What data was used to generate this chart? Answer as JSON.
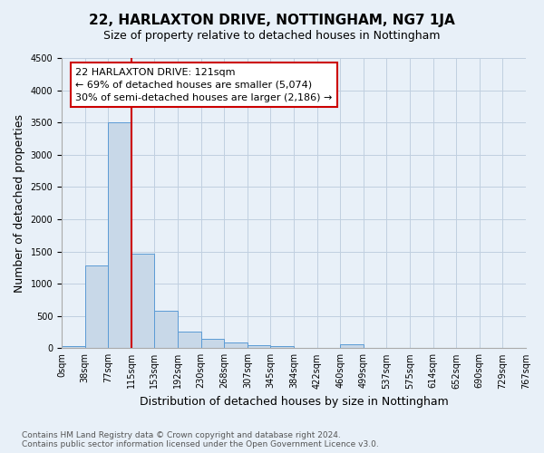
{
  "title": "22, HARLAXTON DRIVE, NOTTINGHAM, NG7 1JA",
  "subtitle": "Size of property relative to detached houses in Nottingham",
  "xlabel": "Distribution of detached houses by size in Nottingham",
  "ylabel": "Number of detached properties",
  "bar_color": "#c8d8e8",
  "bar_edge_color": "#5b9bd5",
  "grid_color": "#c0cfe0",
  "background_color": "#e8f0f8",
  "tick_labels": [
    "0sqm",
    "38sqm",
    "77sqm",
    "115sqm",
    "153sqm",
    "192sqm",
    "230sqm",
    "268sqm",
    "307sqm",
    "345sqm",
    "384sqm",
    "422sqm",
    "460sqm",
    "499sqm",
    "537sqm",
    "575sqm",
    "614sqm",
    "652sqm",
    "690sqm",
    "729sqm",
    "767sqm"
  ],
  "bar_values": [
    30,
    1280,
    3500,
    1470,
    580,
    260,
    145,
    90,
    50,
    30,
    5,
    0,
    60,
    0,
    0,
    0,
    0,
    0,
    0,
    0
  ],
  "ylim": [
    0,
    4500
  ],
  "yticks": [
    0,
    500,
    1000,
    1500,
    2000,
    2500,
    3000,
    3500,
    4000,
    4500
  ],
  "vline_bar_index": 3,
  "vline_color": "#cc0000",
  "annotation_text": "22 HARLAXTON DRIVE: 121sqm\n← 69% of detached houses are smaller (5,074)\n30% of semi-detached houses are larger (2,186) →",
  "annotation_box_color": "#ffffff",
  "annotation_box_edge": "#cc0000",
  "footnote": "Contains HM Land Registry data © Crown copyright and database right 2024.\nContains public sector information licensed under the Open Government Licence v3.0.",
  "title_fontsize": 11,
  "subtitle_fontsize": 9,
  "xlabel_fontsize": 9,
  "ylabel_fontsize": 9,
  "tick_fontsize": 7,
  "annotation_fontsize": 8,
  "footnote_fontsize": 6.5
}
